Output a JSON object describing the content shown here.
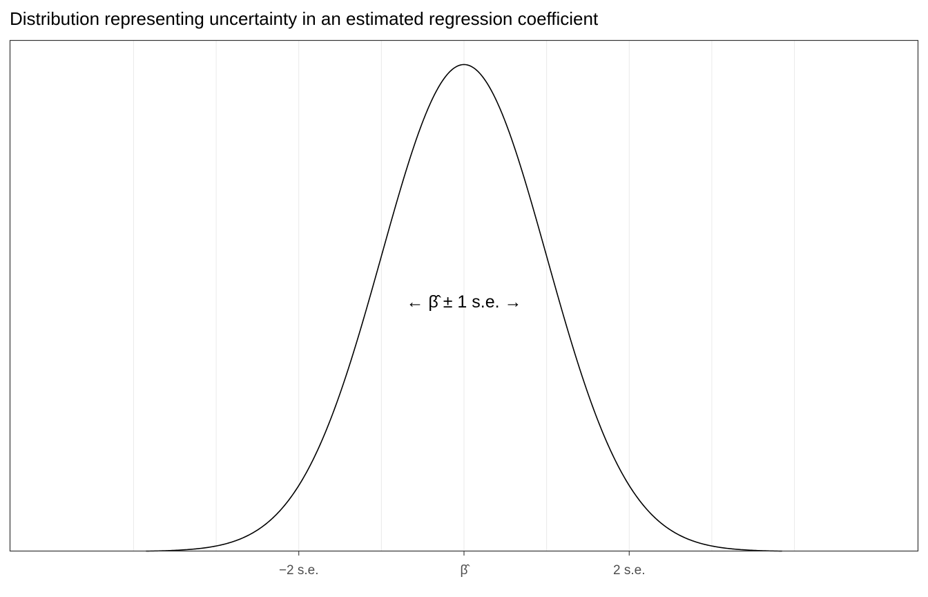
{
  "chart_data": {
    "type": "line",
    "title": "Distribution representing uncertainty in an estimated regression coefficient",
    "xlabel": "",
    "ylabel": "",
    "x_unit": "standard errors from the estimate",
    "xlim": [
      -5.5,
      5.5
    ],
    "ylim": [
      0,
      0.419
    ],
    "grid": {
      "x_major": true,
      "x_minor": true,
      "y": false
    },
    "x_ticks": [
      {
        "value": -2,
        "label": "−2 s.e."
      },
      {
        "value": 0,
        "label": "β̂"
      },
      {
        "value": 2,
        "label": "2 s.e."
      }
    ],
    "series": [
      {
        "distribution": "normal",
        "mean": 0,
        "sd": 1,
        "x_range": [
          -3.85,
          3.85
        ],
        "color": "#000000"
      }
    ],
    "annotations": [
      {
        "text": "← β̂ ± 1 s.e. →",
        "parts": {
          "left_arrow": "←",
          "symbol": "β̂",
          "middle": "± 1 s.e.",
          "right_arrow": "→"
        },
        "x": 0,
        "y": 0.205
      }
    ]
  }
}
